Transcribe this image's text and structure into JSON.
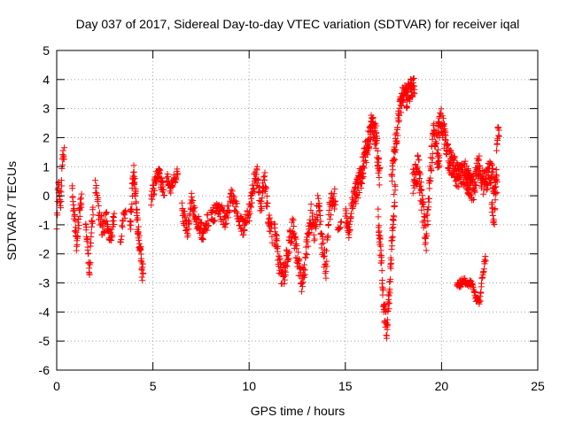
{
  "chart_data": {
    "type": "scatter",
    "title": "Day 037 of 2017, Sidereal Day-to-day VTEC variation (SDTVAR) for receiver iqal",
    "xlabel": "GPS time / hours",
    "ylabel": "SDTVAR / TECUs",
    "xlim": [
      0,
      25
    ],
    "ylim": [
      -6,
      5
    ],
    "xticks": [
      0,
      5,
      10,
      15,
      20,
      25
    ],
    "yticks": [
      -6,
      -5,
      -4,
      -3,
      -2,
      -1,
      0,
      1,
      2,
      3,
      4,
      5
    ],
    "xtick_labels": [
      "0",
      "5",
      "10",
      "15",
      "20",
      "25"
    ],
    "ytick_labels": [
      "-6",
      "-5",
      "-4",
      "-3",
      "-2",
      "-1",
      "0",
      "1",
      "2",
      "3",
      "4",
      "5"
    ],
    "grid": true,
    "marker": "+",
    "color": "#ff0000",
    "series": [
      {
        "name": "SDTVAR",
        "segments": [
          {
            "t": [
              0.0,
              0.4
            ],
            "ypath": [
              [
                0.0,
                -0.9
              ],
              [
                0.1,
                0.4
              ],
              [
                0.2,
                -0.3
              ],
              [
                0.3,
                1.2
              ],
              [
                0.4,
                1.4
              ]
            ],
            "spread": 0.6,
            "n": 30
          },
          {
            "t": [
              0.8,
              1.3
            ],
            "ypath": [
              [
                0.8,
                0.3
              ],
              [
                0.95,
                -1.0
              ],
              [
                1.05,
                -1.8
              ],
              [
                1.15,
                -0.8
              ],
              [
                1.3,
                0.0
              ]
            ],
            "spread": 0.6,
            "n": 45
          },
          {
            "t": [
              1.5,
              1.9
            ],
            "ypath": [
              [
                1.5,
                -0.9
              ],
              [
                1.6,
                -1.6
              ],
              [
                1.7,
                -2.8
              ],
              [
                1.8,
                -1.2
              ],
              [
                1.9,
                -0.5
              ]
            ],
            "spread": 0.5,
            "n": 35
          },
          {
            "t": [
              2.0,
              3.0
            ],
            "ypath": [
              [
                2.0,
                0.4
              ],
              [
                2.2,
                -0.6
              ],
              [
                2.4,
                -1.2
              ],
              [
                2.6,
                -0.8
              ],
              [
                2.8,
                -1.5
              ],
              [
                3.0,
                -0.6
              ]
            ],
            "spread": 0.6,
            "n": 65
          },
          {
            "t": [
              3.3,
              3.6
            ],
            "ypath": [
              [
                3.3,
                -1.6
              ],
              [
                3.45,
                -0.8
              ],
              [
                3.6,
                -0.6
              ]
            ],
            "spread": 0.4,
            "n": 15
          },
          {
            "t": [
              3.8,
              4.5
            ],
            "ypath": [
              [
                3.8,
                -1.2
              ],
              [
                4.0,
                0.8
              ],
              [
                4.15,
                -0.5
              ],
              [
                4.3,
                -1.6
              ],
              [
                4.45,
                -2.6
              ]
            ],
            "spread": 0.8,
            "n": 80
          },
          {
            "t": [
              4.9,
              5.6
            ],
            "ypath": [
              [
                4.9,
                -0.1
              ],
              [
                5.1,
                0.4
              ],
              [
                5.3,
                0.9
              ],
              [
                5.45,
                0.4
              ],
              [
                5.6,
                0.2
              ]
            ],
            "spread": 0.5,
            "n": 55
          },
          {
            "t": [
              5.7,
              6.3
            ],
            "ypath": [
              [
                5.7,
                0.7
              ],
              [
                5.9,
                0.2
              ],
              [
                6.1,
                0.6
              ],
              [
                6.3,
                0.8
              ]
            ],
            "spread": 0.4,
            "n": 35
          },
          {
            "t": [
              6.5,
              7.9
            ],
            "ypath": [
              [
                6.5,
                -0.5
              ],
              [
                6.8,
                -1.2
              ],
              [
                7.0,
                -0.2
              ],
              [
                7.3,
                -0.9
              ],
              [
                7.6,
                -1.3
              ],
              [
                7.9,
                -0.8
              ]
            ],
            "spread": 0.6,
            "n": 90
          },
          {
            "t": [
              8.0,
              10.0
            ],
            "ypath": [
              [
                8.0,
                -0.8
              ],
              [
                8.4,
                -0.4
              ],
              [
                8.8,
                -0.9
              ],
              [
                9.1,
                0.1
              ],
              [
                9.4,
                -0.6
              ],
              [
                9.7,
                -1.1
              ],
              [
                10.0,
                -0.3
              ]
            ],
            "spread": 0.6,
            "n": 120
          },
          {
            "t": [
              10.0,
              11.2
            ],
            "ypath": [
              [
                10.0,
                -0.6
              ],
              [
                10.2,
                0.3
              ],
              [
                10.4,
                0.8
              ],
              [
                10.6,
                -0.4
              ],
              [
                10.8,
                0.6
              ],
              [
                11.0,
                -0.7
              ],
              [
                11.2,
                -1.4
              ]
            ],
            "spread": 0.7,
            "n": 90
          },
          {
            "t": [
              11.3,
              12.3
            ],
            "ypath": [
              [
                11.3,
                -1.2
              ],
              [
                11.5,
                -2.0
              ],
              [
                11.7,
                -3.0
              ],
              [
                11.9,
                -2.4
              ],
              [
                12.1,
                -1.6
              ],
              [
                12.3,
                -1.0
              ]
            ],
            "spread": 0.8,
            "n": 80
          },
          {
            "t": [
              12.3,
              13.2
            ],
            "ypath": [
              [
                12.3,
                -1.2
              ],
              [
                12.5,
                -2.1
              ],
              [
                12.7,
                -3.0
              ],
              [
                12.9,
                -2.3
              ],
              [
                13.1,
                -1.2
              ],
              [
                13.2,
                -0.9
              ]
            ],
            "spread": 0.8,
            "n": 70
          },
          {
            "t": [
              13.2,
              14.5
            ],
            "ypath": [
              [
                13.2,
                -0.6
              ],
              [
                13.4,
                -1.2
              ],
              [
                13.6,
                -0.2
              ],
              [
                13.8,
                -1.7
              ],
              [
                14.0,
                -2.5
              ],
              [
                14.2,
                -0.4
              ],
              [
                14.5,
                0.0
              ]
            ],
            "spread": 0.8,
            "n": 90
          },
          {
            "t": [
              14.6,
              14.8
            ],
            "ypath": [
              [
                14.6,
                -1.1
              ],
              [
                14.8,
                -1.0
              ]
            ],
            "spread": 0.3,
            "n": 8
          },
          {
            "t": [
              15.0,
              15.5
            ],
            "ypath": [
              [
                15.0,
                -0.6
              ],
              [
                15.2,
                -1.3
              ],
              [
                15.35,
                -0.3
              ],
              [
                15.5,
                0.1
              ]
            ],
            "spread": 0.5,
            "n": 40
          },
          {
            "t": [
              15.5,
              16.8
            ],
            "ypath": [
              [
                15.5,
                0.0
              ],
              [
                15.8,
                0.6
              ],
              [
                16.0,
                1.3
              ],
              [
                16.2,
                1.9
              ],
              [
                16.4,
                2.5
              ],
              [
                16.6,
                2.0
              ],
              [
                16.8,
                0.5
              ]
            ],
            "spread": 0.9,
            "n": 150
          },
          {
            "t": [
              16.7,
              17.6
            ],
            "ypath": [
              [
                16.7,
                -0.8
              ],
              [
                16.9,
                -2.5
              ],
              [
                17.0,
                -3.8
              ],
              [
                17.15,
                -4.6
              ],
              [
                17.3,
                -3.2
              ],
              [
                17.45,
                -1.2
              ],
              [
                17.6,
                0.4
              ]
            ],
            "spread": 0.8,
            "n": 100
          },
          {
            "t": [
              17.4,
              18.6
            ],
            "ypath": [
              [
                17.4,
                0.4
              ],
              [
                17.6,
                1.8
              ],
              [
                17.8,
                2.8
              ],
              [
                18.0,
                3.6
              ],
              [
                18.2,
                3.4
              ],
              [
                18.4,
                3.7
              ],
              [
                18.6,
                3.8
              ]
            ],
            "spread": 0.8,
            "n": 120
          },
          {
            "t": [
              18.5,
              19.9
            ],
            "ypath": [
              [
                18.5,
                0.4
              ],
              [
                18.8,
                1.0
              ],
              [
                19.0,
                -0.4
              ],
              [
                19.2,
                -1.5
              ],
              [
                19.4,
                0.6
              ],
              [
                19.6,
                2.2
              ],
              [
                19.9,
                1.0
              ]
            ],
            "spread": 1.0,
            "n": 130
          },
          {
            "t": [
              19.8,
              21.5
            ],
            "ypath": [
              [
                19.8,
                2.2
              ],
              [
                20.0,
                2.6
              ],
              [
                20.3,
                1.4
              ],
              [
                20.6,
                1.0
              ],
              [
                20.9,
                0.6
              ],
              [
                21.2,
                0.8
              ],
              [
                21.5,
                0.3
              ]
            ],
            "spread": 0.9,
            "n": 170
          },
          {
            "t": [
              21.3,
              22.9
            ],
            "ypath": [
              [
                21.3,
                0.6
              ],
              [
                21.6,
                0.1
              ],
              [
                21.9,
                1.1
              ],
              [
                22.2,
                0.4
              ],
              [
                22.5,
                0.8
              ],
              [
                22.9,
                0.2
              ]
            ],
            "spread": 0.9,
            "n": 140
          },
          {
            "t": [
              20.8,
              21.4
            ],
            "ypath": [
              [
                20.8,
                -3.1
              ],
              [
                21.0,
                -3.0
              ],
              [
                21.2,
                -2.9
              ],
              [
                21.4,
                -3.0
              ]
            ],
            "spread": 0.25,
            "n": 40
          },
          {
            "t": [
              21.4,
              22.3
            ],
            "ypath": [
              [
                21.4,
                -3.0
              ],
              [
                21.6,
                -3.1
              ],
              [
                21.8,
                -3.5
              ],
              [
                22.0,
                -3.6
              ],
              [
                22.15,
                -2.6
              ],
              [
                22.3,
                -2.1
              ]
            ],
            "spread": 0.3,
            "n": 55
          },
          {
            "t": [
              22.6,
              23.0
            ],
            "ypath": [
              [
                22.6,
                -0.3
              ],
              [
                22.75,
                -0.9
              ],
              [
                22.9,
                2.1
              ],
              [
                23.0,
                2.3
              ]
            ],
            "spread": 0.5,
            "n": 30
          }
        ]
      }
    ]
  }
}
